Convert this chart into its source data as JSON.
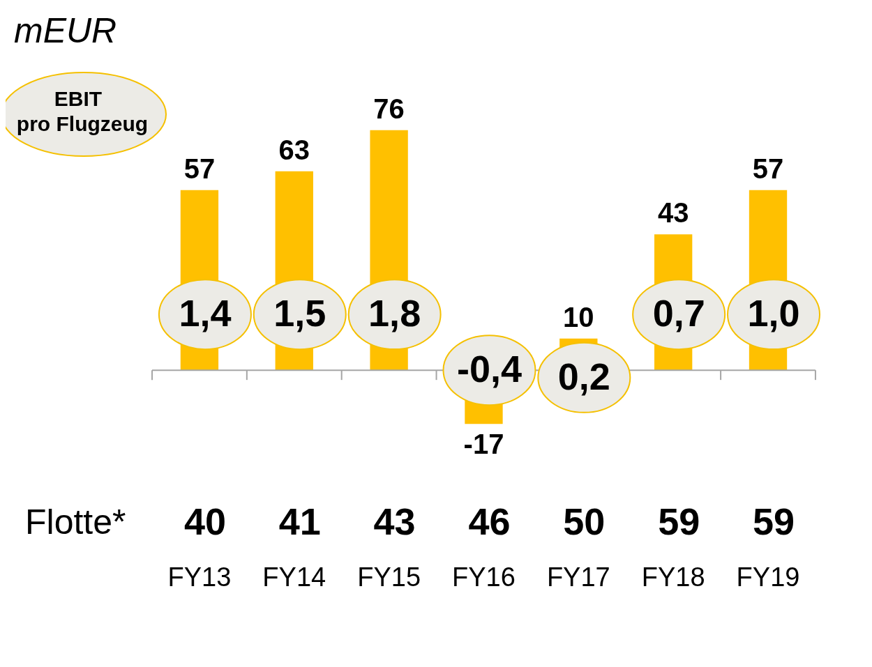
{
  "chart_data": {
    "type": "bar",
    "ylabel": "mEUR",
    "categories": [
      "FY13",
      "FY14",
      "FY15",
      "FY16",
      "FY17",
      "FY18",
      "FY19"
    ],
    "values": [
      57,
      63,
      76,
      -17,
      10,
      43,
      57
    ],
    "color": "#ffc000",
    "data_labels": true,
    "tick_labels": "x",
    "grid": false,
    "legend": false,
    "annotations": [
      "EBIT pro Flugzeug",
      "Flotte*",
      "1,4",
      "1,5",
      "1,8",
      "-0,4",
      "0,2",
      "0,7",
      "1,0",
      "40",
      "41",
      "43",
      "46",
      "50",
      "59",
      "59"
    ]
  }
}
